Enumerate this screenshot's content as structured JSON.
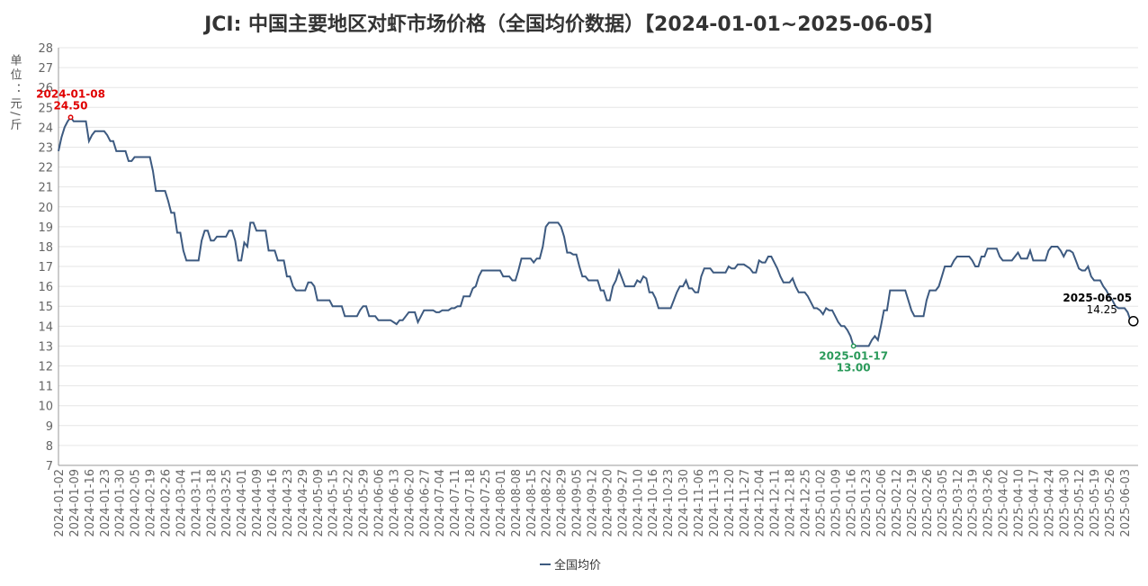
{
  "chart_data": {
    "type": "line",
    "title": "JCI: 中国主要地区对虾市场价格（全国均价数据）【2024-01-01~2025-06-05】",
    "y_label": "单位：元/斤",
    "ylim": [
      7,
      28
    ],
    "yticks": [
      7,
      8,
      9,
      10,
      11,
      12,
      13,
      14,
      15,
      16,
      17,
      18,
      19,
      20,
      21,
      22,
      23,
      24,
      25,
      26,
      27,
      28
    ],
    "grid": true,
    "legend": "bottom",
    "categories": [
      "2024-01-02",
      null,
      null,
      null,
      null,
      "2024-01-09",
      null,
      null,
      null,
      null,
      "2024-01-16",
      null,
      null,
      null,
      null,
      "2024-01-23",
      null,
      null,
      null,
      null,
      "2024-01-30",
      null,
      null,
      null,
      null,
      "2024-02-05",
      null,
      null,
      null,
      null,
      "2024-02-19",
      null,
      null,
      null,
      null,
      "2024-02-26",
      null,
      null,
      null,
      null,
      "2024-03-04",
      null,
      null,
      null,
      null,
      "2024-03-11",
      null,
      null,
      null,
      null,
      "2024-03-18",
      null,
      null,
      null,
      null,
      "2024-03-25",
      null,
      null,
      null,
      null,
      "2024-04-01",
      null,
      null,
      null,
      null,
      "2024-04-09",
      null,
      null,
      null,
      null,
      "2024-04-16",
      null,
      null,
      null,
      null,
      "2024-04-23",
      null,
      null,
      null,
      null,
      "2024-04-29",
      null,
      null,
      null,
      null,
      "2024-05-09",
      null,
      null,
      null,
      null,
      "2024-05-15",
      null,
      null,
      null,
      null,
      "2024-05-22",
      null,
      null,
      null,
      null,
      "2024-05-29",
      null,
      null,
      null,
      null,
      "2024-06-06",
      null,
      null,
      null,
      null,
      "2024-06-13",
      null,
      null,
      null,
      null,
      "2024-06-20",
      null,
      null,
      null,
      null,
      "2024-06-27",
      null,
      null,
      null,
      null,
      "2024-07-04",
      null,
      null,
      null,
      null,
      "2024-07-11",
      null,
      null,
      null,
      null,
      "2024-07-18",
      null,
      null,
      null,
      null,
      "2024-07-25",
      null,
      null,
      null,
      null,
      "2024-08-01",
      null,
      null,
      null,
      null,
      "2024-08-08",
      null,
      null,
      null,
      null,
      "2024-08-15",
      null,
      null,
      null,
      null,
      "2024-08-22",
      null,
      null,
      null,
      null,
      "2024-08-29",
      null,
      null,
      null,
      null,
      "2024-09-05",
      null,
      null,
      null,
      null,
      "2024-09-12",
      null,
      null,
      null,
      null,
      "2024-09-20",
      null,
      null,
      null,
      null,
      "2024-09-27",
      null,
      null,
      null,
      null,
      "2024-10-10",
      null,
      null,
      null,
      null,
      "2024-10-16",
      null,
      null,
      null,
      null,
      "2024-10-23",
      null,
      null,
      null,
      null,
      "2024-10-30",
      null,
      null,
      null,
      null,
      "2024-11-06",
      null,
      null,
      null,
      null,
      "2024-11-13",
      null,
      null,
      null,
      null,
      "2024-11-20",
      null,
      null,
      null,
      null,
      "2024-11-27",
      null,
      null,
      null,
      null,
      "2024-12-04",
      null,
      null,
      null,
      null,
      "2024-12-11",
      null,
      null,
      null,
      null,
      "2024-12-18",
      null,
      null,
      null,
      null,
      "2024-12-25",
      null,
      null,
      null,
      null,
      "2025-01-02",
      null,
      null,
      null,
      null,
      "2025-01-09",
      null,
      null,
      null,
      null,
      "2025-01-16",
      null,
      null,
      null,
      null,
      "2025-01-23",
      null,
      null,
      null,
      null,
      "2025-02-06",
      null,
      null,
      null,
      null,
      "2025-02-12",
      null,
      null,
      null,
      null,
      "2025-02-19",
      null,
      null,
      null,
      null,
      "2025-02-26",
      null,
      null,
      null,
      null,
      "2025-03-05",
      null,
      null,
      null,
      null,
      "2025-03-12",
      null,
      null,
      null,
      null,
      "2025-03-19",
      null,
      null,
      null,
      null,
      "2025-03-26",
      null,
      null,
      null,
      null,
      "2025-04-02",
      null,
      null,
      null,
      null,
      "2025-04-10",
      null,
      null,
      null,
      null,
      "2025-04-17",
      null,
      null,
      null,
      null,
      "2025-04-24",
      null,
      null,
      null,
      null,
      "2025-04-30",
      null,
      null,
      null,
      null,
      "2025-05-12",
      null,
      null,
      null,
      null,
      "2025-05-19",
      null,
      null,
      null,
      null,
      "2025-05-26",
      null,
      null,
      null,
      null,
      "2025-06-03",
      null,
      null
    ],
    "series": [
      {
        "name": "全国均价",
        "color": "#3d5a80",
        "values": [
          22.8,
          23.5,
          24.0,
          24.3,
          24.5,
          24.3,
          24.3,
          24.3,
          24.3,
          24.3,
          23.3,
          23.6,
          23.8,
          23.8,
          23.8,
          23.8,
          23.6,
          23.3,
          23.3,
          22.8,
          22.8,
          22.8,
          22.8,
          22.3,
          22.3,
          22.5,
          22.5,
          22.5,
          22.5,
          22.5,
          22.5,
          21.8,
          20.8,
          20.8,
          20.8,
          20.8,
          20.3,
          19.7,
          19.7,
          18.7,
          18.7,
          17.8,
          17.3,
          17.3,
          17.3,
          17.3,
          17.3,
          18.3,
          18.8,
          18.8,
          18.3,
          18.3,
          18.5,
          18.5,
          18.5,
          18.5,
          18.8,
          18.8,
          18.3,
          17.3,
          17.3,
          18.2,
          18.0,
          19.2,
          19.2,
          18.8,
          18.8,
          18.8,
          18.8,
          17.8,
          17.8,
          17.8,
          17.3,
          17.3,
          17.3,
          16.5,
          16.5,
          16.0,
          15.8,
          15.8,
          15.8,
          15.8,
          16.2,
          16.2,
          16.0,
          15.3,
          15.3,
          15.3,
          15.3,
          15.3,
          15.0,
          15.0,
          15.0,
          15.0,
          14.5,
          14.5,
          14.5,
          14.5,
          14.5,
          14.8,
          15.0,
          15.0,
          14.5,
          14.5,
          14.5,
          14.3,
          14.3,
          14.3,
          14.3,
          14.3,
          14.2,
          14.1,
          14.3,
          14.3,
          14.5,
          14.7,
          14.7,
          14.7,
          14.2,
          14.5,
          14.8,
          14.8,
          14.8,
          14.8,
          14.7,
          14.7,
          14.8,
          14.8,
          14.8,
          14.9,
          14.9,
          15.0,
          15.0,
          15.5,
          15.5,
          15.5,
          15.9,
          16.0,
          16.5,
          16.8,
          16.8,
          16.8,
          16.8,
          16.8,
          16.8,
          16.8,
          16.5,
          16.5,
          16.5,
          16.3,
          16.3,
          16.8,
          17.4,
          17.4,
          17.4,
          17.4,
          17.2,
          17.4,
          17.4,
          18.0,
          19.0,
          19.2,
          19.2,
          19.2,
          19.2,
          19.0,
          18.5,
          17.7,
          17.7,
          17.6,
          17.6,
          17.0,
          16.5,
          16.5,
          16.3,
          16.3,
          16.3,
          16.3,
          15.8,
          15.8,
          15.3,
          15.3,
          16.0,
          16.3,
          16.8,
          16.4,
          16.0,
          16.0,
          16.0,
          16.0,
          16.3,
          16.2,
          16.5,
          16.4,
          15.7,
          15.7,
          15.4,
          14.9,
          14.9,
          14.9,
          14.9,
          14.9,
          15.3,
          15.7,
          16.0,
          16.0,
          16.3,
          15.9,
          15.9,
          15.7,
          15.7,
          16.5,
          16.9,
          16.9,
          16.9,
          16.7,
          16.7,
          16.7,
          16.7,
          16.7,
          17.0,
          16.9,
          16.9,
          17.1,
          17.1,
          17.1,
          17.0,
          16.9,
          16.7,
          16.7,
          17.3,
          17.2,
          17.2,
          17.5,
          17.5,
          17.2,
          16.9,
          16.5,
          16.2,
          16.2,
          16.2,
          16.4,
          16.0,
          15.7,
          15.7,
          15.7,
          15.5,
          15.2,
          14.9,
          14.9,
          14.8,
          14.6,
          14.9,
          14.8,
          14.8,
          14.5,
          14.2,
          14.0,
          14.0,
          13.8,
          13.5,
          13.0,
          13.0,
          13.0,
          13.0,
          13.0,
          13.0,
          13.3,
          13.5,
          13.3,
          14.0,
          14.8,
          14.8,
          15.8,
          15.8,
          15.8,
          15.8,
          15.8,
          15.8,
          15.3,
          14.8,
          14.5,
          14.5,
          14.5,
          14.5,
          15.3,
          15.8,
          15.8,
          15.8,
          16.0,
          16.5,
          17.0,
          17.0,
          17.0,
          17.3,
          17.5,
          17.5,
          17.5,
          17.5,
          17.5,
          17.3,
          17.0,
          17.0,
          17.5,
          17.5,
          17.9,
          17.9,
          17.9,
          17.9,
          17.5,
          17.3,
          17.3,
          17.3,
          17.3,
          17.5,
          17.7,
          17.4,
          17.4,
          17.4,
          17.8,
          17.3,
          17.3,
          17.3,
          17.3,
          17.3,
          17.8,
          18.0,
          18.0,
          18.0,
          17.8,
          17.5,
          17.8,
          17.8,
          17.7,
          17.3,
          16.9,
          16.8,
          16.8,
          17.0,
          16.5,
          16.3,
          16.3,
          16.3,
          16.0,
          15.8,
          15.5,
          15.3,
          15.0,
          14.9,
          14.9,
          14.9,
          14.7,
          14.25
        ]
      }
    ],
    "annotations": [
      {
        "date": "2024-01-08",
        "value": 24.5,
        "value_label": "24.50",
        "color": "#e00000"
      },
      {
        "date": "2025-01-17",
        "value": 13.0,
        "value_label": "13.00",
        "color": "#2a9a5a"
      },
      {
        "date": "2025-06-05",
        "value": 14.25,
        "value_label": "14.25",
        "color": "#000000"
      }
    ]
  }
}
